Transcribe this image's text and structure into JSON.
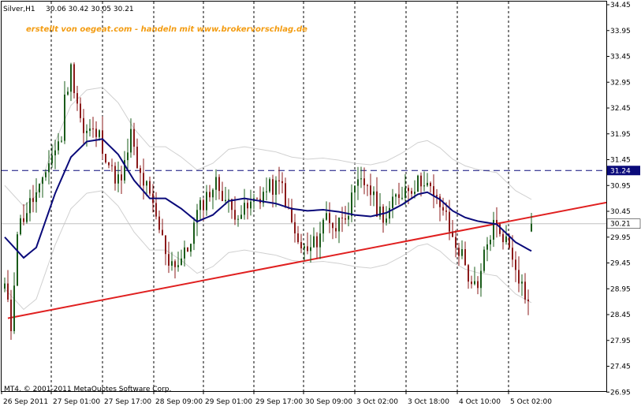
{
  "header": {
    "symbol": "Silver,H1",
    "ohlc": "30.06 30.42 30.05 30.21"
  },
  "watermark": "erstellt von oegeat.com - handeln mit www.brokervorschlag.de",
  "copyright": "MT4, © 2001-2011 MetaQuotes Software Corp.",
  "colors": {
    "background": "#ffffff",
    "candle_up": "#1a5c1a",
    "candle_down": "#8b1a1a",
    "moving_average": "#0a0a7a",
    "trendline": "#e02020",
    "hline": "#0a0a7a",
    "grid": "#000000",
    "envelope": "#d0d0d0",
    "watermark": "#f39c12"
  },
  "chart_data": {
    "type": "candlestick",
    "ylim": [
      26.95,
      34.45
    ],
    "yticks": [
      "34.45",
      "33.95",
      "33.45",
      "32.95",
      "32.45",
      "31.95",
      "31.45",
      "30.95",
      "30.45",
      "29.95",
      "29.45",
      "28.95",
      "28.45",
      "27.95",
      "27.45",
      "26.95"
    ],
    "xticks": [
      "26 Sep 2011",
      "27 Sep 01:00",
      "27 Sep 17:00",
      "28 Sep 09:00",
      "29 Sep 01:00",
      "29 Sep 17:00",
      "30 Sep 09:00",
      "3 Oct 02:00",
      "3 Oct 18:00",
      "4 Oct 10:00",
      "5 Oct 02:00"
    ],
    "price_label": "30.21",
    "hline": {
      "value": 31.24,
      "label": "31.24"
    },
    "trendline": {
      "from": [
        0,
        28.38
      ],
      "to": [
        207,
        30.62
      ]
    },
    "ma_anchors": [
      [
        0,
        29.95
      ],
      [
        6,
        29.55
      ],
      [
        10,
        29.75
      ],
      [
        16,
        30.8
      ],
      [
        21,
        31.5
      ],
      [
        26,
        31.8
      ],
      [
        31,
        31.85
      ],
      [
        36,
        31.55
      ],
      [
        41,
        31.05
      ],
      [
        46,
        30.7
      ],
      [
        51,
        30.7
      ],
      [
        56,
        30.5
      ],
      [
        61,
        30.25
      ],
      [
        66,
        30.38
      ],
      [
        71,
        30.65
      ],
      [
        76,
        30.7
      ],
      [
        81,
        30.65
      ],
      [
        86,
        30.6
      ],
      [
        91,
        30.5
      ],
      [
        96,
        30.46
      ],
      [
        101,
        30.48
      ],
      [
        106,
        30.44
      ],
      [
        111,
        30.38
      ],
      [
        116,
        30.35
      ],
      [
        121,
        30.42
      ],
      [
        126,
        30.58
      ],
      [
        131,
        30.78
      ],
      [
        134,
        30.82
      ],
      [
        138,
        30.68
      ],
      [
        142,
        30.46
      ],
      [
        146,
        30.33
      ],
      [
        150,
        30.26
      ],
      [
        156,
        30.2
      ],
      [
        162,
        29.85
      ],
      [
        167,
        29.68
      ]
    ],
    "candle_count": 168,
    "candle_seed": 11,
    "candle_anchors": [
      [
        0,
        29.0
      ],
      [
        2,
        28.2
      ],
      [
        4,
        30.1
      ],
      [
        8,
        30.6
      ],
      [
        12,
        30.95
      ],
      [
        14,
        31.45
      ],
      [
        16,
        31.65
      ],
      [
        18,
        31.9
      ],
      [
        19,
        32.6
      ],
      [
        21,
        33.2
      ],
      [
        23,
        32.6
      ],
      [
        25,
        31.95
      ],
      [
        27,
        32.0
      ],
      [
        30,
        31.9
      ],
      [
        34,
        31.2
      ],
      [
        37,
        31.0
      ],
      [
        40,
        31.95
      ],
      [
        42,
        31.25
      ],
      [
        45,
        30.9
      ],
      [
        49,
        30.1
      ],
      [
        52,
        29.5
      ],
      [
        55,
        29.45
      ],
      [
        58,
        29.7
      ],
      [
        61,
        30.4
      ],
      [
        64,
        30.75
      ],
      [
        67,
        31.0
      ],
      [
        69,
        30.8
      ],
      [
        72,
        30.45
      ],
      [
        76,
        30.45
      ],
      [
        80,
        30.7
      ],
      [
        84,
        30.9
      ],
      [
        88,
        30.95
      ],
      [
        90,
        30.4
      ],
      [
        93,
        29.8
      ],
      [
        96,
        29.65
      ],
      [
        99,
        29.9
      ],
      [
        102,
        30.4
      ],
      [
        105,
        30.1
      ],
      [
        107,
        30.4
      ],
      [
        109,
        30.5
      ],
      [
        112,
        30.95
      ],
      [
        115,
        31.0
      ],
      [
        118,
        30.5
      ],
      [
        121,
        30.35
      ],
      [
        124,
        30.7
      ],
      [
        127,
        30.9
      ],
      [
        130,
        30.95
      ],
      [
        133,
        31.1
      ],
      [
        136,
        30.7
      ],
      [
        139,
        30.5
      ],
      [
        142,
        29.9
      ],
      [
        145,
        29.6
      ],
      [
        147,
        29.2
      ],
      [
        150,
        28.85
      ],
      [
        152,
        29.6
      ],
      [
        155,
        30.2
      ],
      [
        158,
        30.0
      ],
      [
        160,
        29.75
      ],
      [
        162,
        29.45
      ],
      [
        163,
        29.2
      ],
      [
        165,
        28.85
      ],
      [
        166,
        28.7
      ],
      [
        167,
        29.1
      ],
      [
        169,
        29.9
      ],
      [
        170,
        30.35
      ]
    ]
  }
}
